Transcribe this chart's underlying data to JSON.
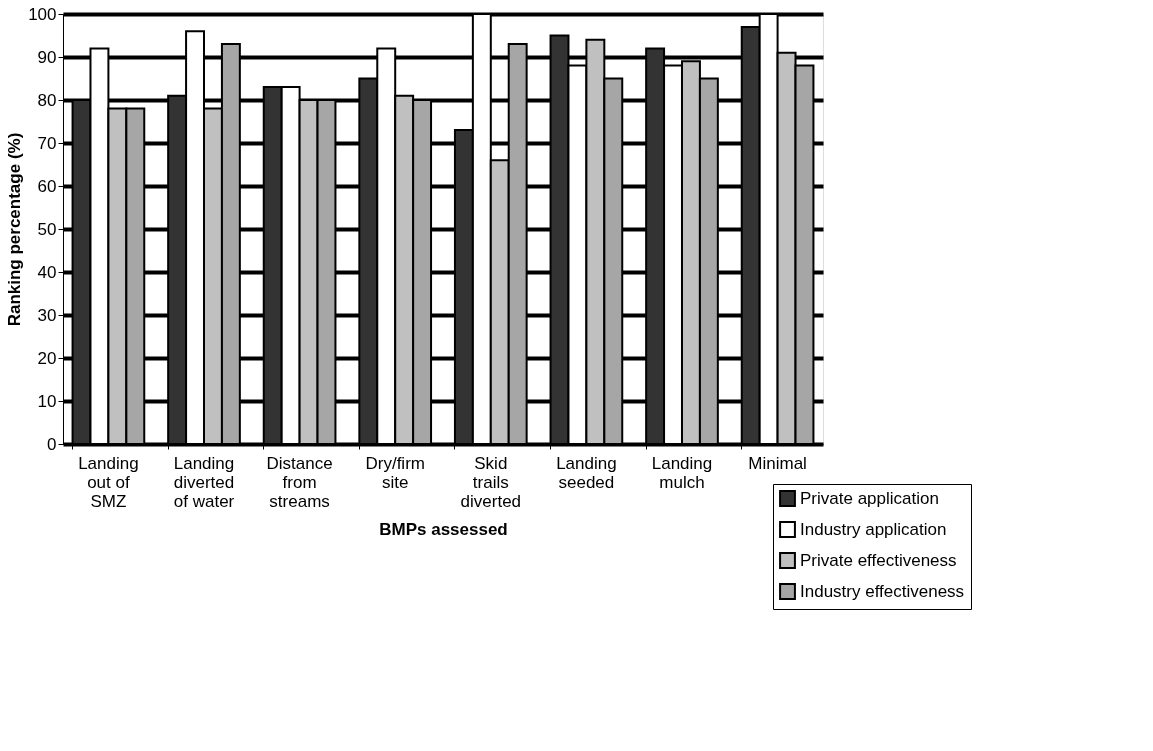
{
  "chart_data": {
    "type": "bar",
    "xlabel": "BMPs assessed",
    "ylabel": "Ranking percentage (%)",
    "categories": [
      "Landing out of SMZ",
      "Landing diverted of water",
      "Distance from streams",
      "Dry/firm site",
      "Skid trails diverted",
      "Landing seeded",
      "Landing mulch",
      "Minimal"
    ],
    "series": [
      {
        "name": "Private application",
        "color": "#333333",
        "values": [
          80,
          81,
          83,
          85,
          73,
          95,
          92,
          97
        ]
      },
      {
        "name": "Industry application",
        "color": "#ffffff",
        "values": [
          92,
          96,
          83,
          92,
          100,
          88,
          88,
          100
        ]
      },
      {
        "name": "Private effectiveness",
        "color": "#c0c0c0",
        "values": [
          78,
          78,
          80,
          81,
          66,
          94,
          89,
          91
        ]
      },
      {
        "name": "Industry effectiveness",
        "color": "#a6a6a6",
        "values": [
          78,
          93,
          80,
          80,
          93,
          85,
          85,
          88
        ]
      }
    ],
    "ylim": [
      0,
      100
    ],
    "yticks": [
      0,
      10,
      20,
      30,
      40,
      50,
      60,
      70,
      80,
      90,
      100
    ],
    "grid": "y",
    "legend": "bottom right"
  }
}
